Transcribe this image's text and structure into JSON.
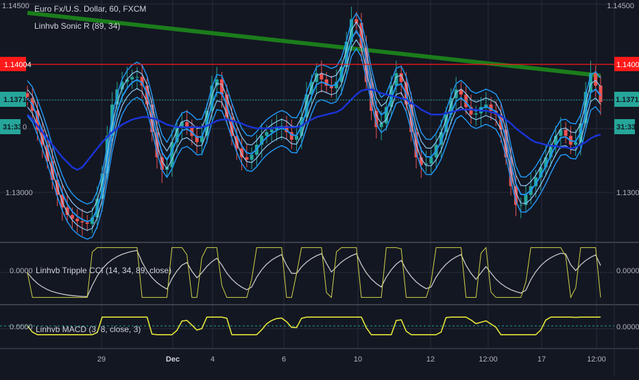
{
  "colors": {
    "background": "#131722",
    "grid": "#2a2e39",
    "separator": "#4a4e59",
    "up": "#26a69a",
    "down": "#ef5350",
    "ema_outer": "#2196f3",
    "ema_inner": "#90caf9",
    "ema_slow": "#1a34d6",
    "ema_long": "#1b7d1b",
    "resistance": "#ff1a1a",
    "price_line": "#26a69a",
    "cci_fast": "#d4d44a",
    "cci_slow": "#c9c9c9",
    "macd": "#e6e63a",
    "macd_signal": "#26a69a"
  },
  "header": {
    "symbol_title": "Euro Fx/U.S. Dollar, 60, FXCM",
    "indicator_main": "Linhvb Sonic R (89, 34)",
    "indicator_cci": "Linhvb Tripple CCI (14, 34, 89, close)",
    "indicator_macd": "Linhvb MACD (3, 8, close, 3)"
  },
  "price_axis": {
    "top_label": "1.14500",
    "mid_label": "1.13000",
    "resistance_badge": "1.14004",
    "price_badge": "1.13712",
    "countdown_badge": "31:33",
    "partial_left_countdown": "31:33",
    "partial_left_suffix": "0"
  },
  "cci_axis": {
    "label": "0.0000"
  },
  "macd_axis": {
    "label": "0.0000"
  },
  "x_axis": {
    "labels": [
      "29",
      "Dec",
      "4",
      "6",
      "10",
      "12",
      "12:00",
      "17",
      "12:00"
    ]
  },
  "chart_data": {
    "type": "candlestick",
    "title": "Euro Fx/U.S. Dollar, 60, FXCM",
    "y_ticks": [
      1.13,
      1.145
    ],
    "x_ticks": [
      "29",
      "Dec",
      "4",
      "6",
      "10",
      "12",
      "12:00",
      "17",
      "12:00"
    ],
    "annotations": {
      "resistance_level": 1.14004,
      "last_price": 1.13712,
      "countdown": "31:33"
    },
    "series": [
      {
        "name": "Linhvb Sonic R (89, 34)",
        "type": "candlestick",
        "values": [
          1.1375,
          1.1365,
          1.135,
          1.1338,
          1.1325,
          1.131,
          1.1298,
          1.1288,
          1.1282,
          1.1279,
          1.1277,
          1.1276,
          1.1275,
          1.128,
          1.1295,
          1.1315,
          1.1345,
          1.137,
          1.1382,
          1.1388,
          1.139,
          1.1392,
          1.1392,
          1.1385,
          1.137,
          1.1348,
          1.1328,
          1.1318,
          1.132,
          1.134,
          1.1352,
          1.1356,
          1.1352,
          1.1345,
          1.134,
          1.1345,
          1.1365,
          1.1385,
          1.139,
          1.1378,
          1.136,
          1.1345,
          1.1335,
          1.1328,
          1.1326,
          1.133,
          1.1338,
          1.1345,
          1.1348,
          1.135,
          1.1352,
          1.1353,
          1.1348,
          1.1342,
          1.1345,
          1.136,
          1.1378,
          1.1388,
          1.1395,
          1.139,
          1.1385,
          1.1383,
          1.1388,
          1.14,
          1.142,
          1.1438,
          1.1435,
          1.1415,
          1.1388,
          1.1365,
          1.1352,
          1.1355,
          1.1368,
          1.1385,
          1.1395,
          1.1388,
          1.137,
          1.1348,
          1.1328,
          1.1322,
          1.1323,
          1.1328,
          1.1338,
          1.1348,
          1.1362,
          1.1375,
          1.1382,
          1.1378,
          1.1368,
          1.1362,
          1.1363,
          1.1368,
          1.137,
          1.1365,
          1.1362,
          1.135,
          1.1328,
          1.1305,
          1.129,
          1.129,
          1.1298,
          1.1305,
          1.1312,
          1.132,
          1.1328,
          1.1338,
          1.1345,
          1.135,
          1.1345,
          1.1338,
          1.134,
          1.1355,
          1.138,
          1.1395,
          1.1385,
          1.1372
        ]
      },
      {
        "name": "EMA 89",
        "type": "line",
        "values": [
          1.1362,
          1.1358,
          1.1353,
          1.1348,
          1.1343,
          1.1338,
          1.1333,
          1.1328,
          1.1324,
          1.132,
          1.1318,
          1.132,
          1.1325,
          1.133,
          1.1335,
          1.134,
          1.1344,
          1.1348,
          1.1351,
          1.1354,
          1.1356,
          1.1358,
          1.1359,
          1.136,
          1.136,
          1.1359,
          1.1358,
          1.1356,
          1.1354,
          1.1353,
          1.1352,
          1.1352,
          1.1352,
          1.1352,
          1.1352,
          1.1352,
          1.1353,
          1.1355,
          1.1357,
          1.1358,
          1.1358,
          1.1357,
          1.1356,
          1.1355,
          1.1353,
          1.1352,
          1.1351,
          1.1351,
          1.1351,
          1.1351,
          1.1352,
          1.1352,
          1.1352,
          1.1352,
          1.1352,
          1.1353,
          1.1356,
          1.1358,
          1.136,
          1.1361,
          1.1362,
          1.1363,
          1.1364,
          1.1366,
          1.137,
          1.1374,
          1.1378,
          1.1381,
          1.1382,
          1.1382,
          1.1381,
          1.1379,
          1.1378,
          1.1377,
          1.1376,
          1.1375,
          1.1374,
          1.1371,
          1.1369,
          1.1366,
          1.1364,
          1.1362,
          1.1362,
          1.1362,
          1.1363,
          1.1364,
          1.1365,
          1.1366,
          1.1366,
          1.1366,
          1.1366,
          1.1365,
          1.1365,
          1.1364,
          1.1363,
          1.1361,
          1.1358,
          1.1355,
          1.1351,
          1.1348,
          1.1345,
          1.1342,
          1.134,
          1.1339,
          1.1338,
          1.1337,
          1.1337,
          1.1336,
          1.1336,
          1.1335,
          1.1336,
          1.1338,
          1.134,
          1.1343,
          1.1345,
          1.1346
        ]
      },
      {
        "name": "EMA long",
        "type": "line",
        "values": [
          1.1443,
          1.1433,
          1.1423,
          1.1413,
          1.1403,
          1.1393
        ],
        "x_positions_fraction": [
          0,
          0.2,
          0.4,
          0.6,
          0.8,
          1.0
        ]
      }
    ],
    "sub_panels": [
      {
        "name": "Linhvb Tripple CCI (14, 34, 89, close)",
        "zero_label": "0.0000"
      },
      {
        "name": "Linhvb MACD (3, 8, close, 3)",
        "zero_label": "0.0000"
      }
    ]
  }
}
